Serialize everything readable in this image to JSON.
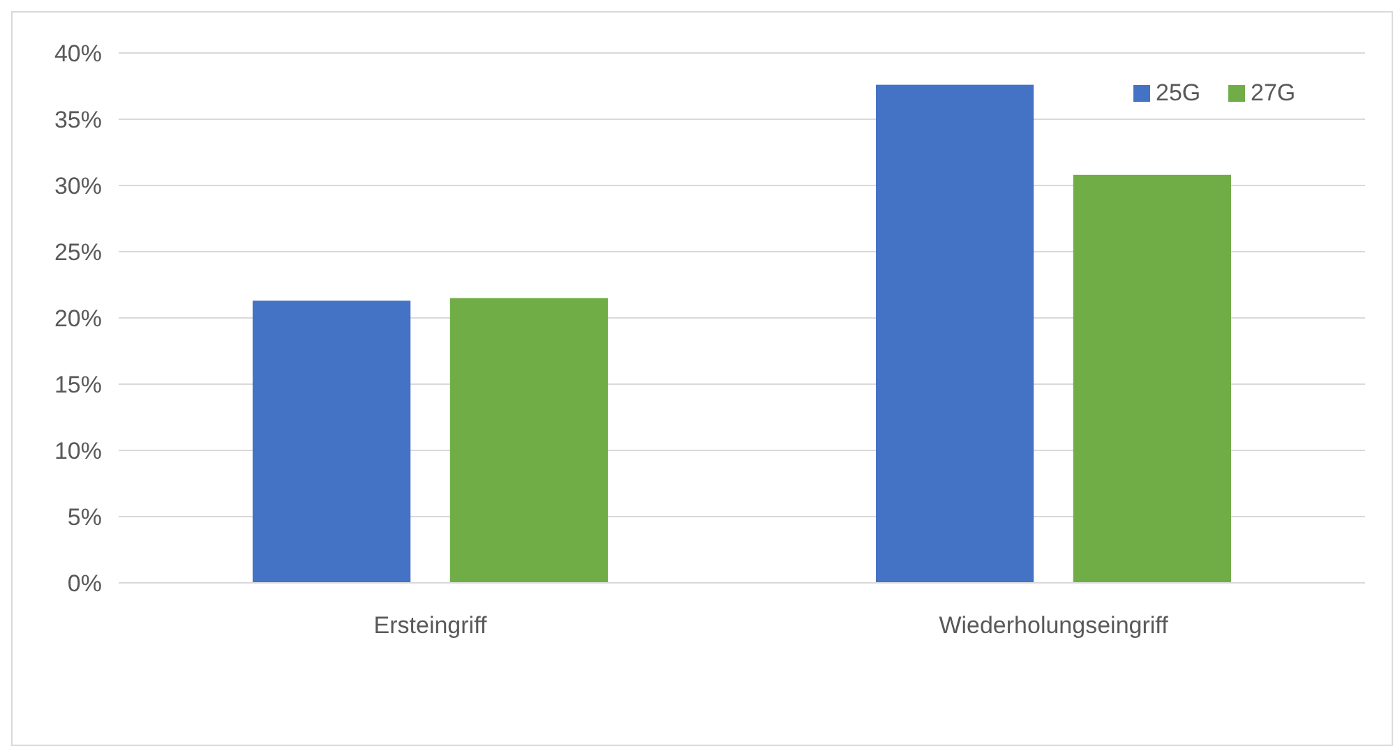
{
  "chart_data": {
    "type": "bar",
    "categories": [
      "Ersteingriff",
      "Wiederholungseingriff"
    ],
    "series": [
      {
        "name": "25G",
        "color": "#4472c4",
        "values": [
          21.3,
          37.6
        ]
      },
      {
        "name": "27G",
        "color": "#70ad47",
        "values": [
          21.5,
          30.8
        ]
      }
    ],
    "ylim": [
      0,
      40
    ],
    "yticks": [
      {
        "value": 0,
        "label": "0%"
      },
      {
        "value": 5,
        "label": "5%"
      },
      {
        "value": 10,
        "label": "10%"
      },
      {
        "value": 15,
        "label": "15%"
      },
      {
        "value": 20,
        "label": "20%"
      },
      {
        "value": 25,
        "label": "25%"
      },
      {
        "value": 30,
        "label": "30%"
      },
      {
        "value": 35,
        "label": "35%"
      },
      {
        "value": 40,
        "label": "40%"
      }
    ],
    "grid": "y",
    "legend": "top right"
  }
}
